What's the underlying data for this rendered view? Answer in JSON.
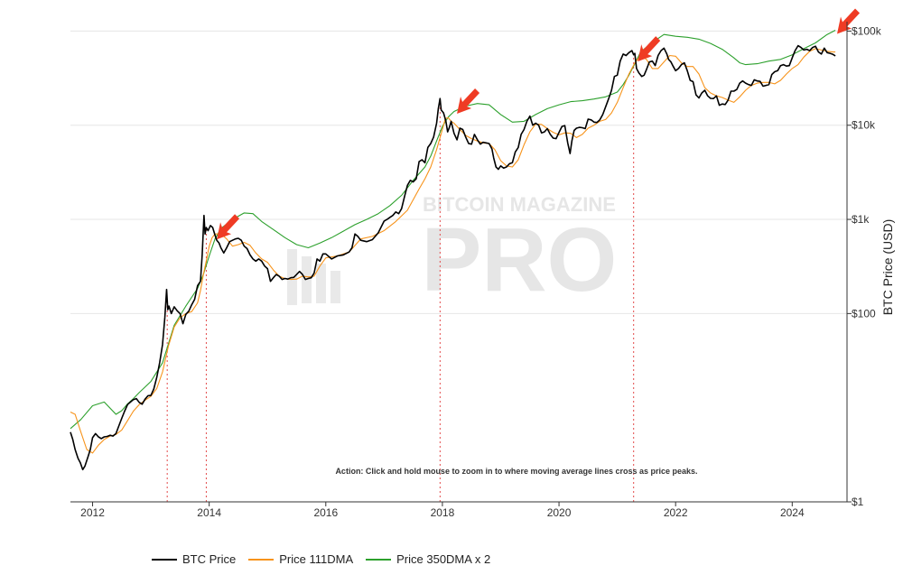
{
  "chart_data": {
    "type": "line",
    "title": "",
    "xlabel": "",
    "ylabel": "BTC Price (USD)",
    "y_scale": "log",
    "ylim": [
      1,
      100000
    ],
    "xlim": [
      2011.62,
      2024.94
    ],
    "x_ticks": [
      "2012",
      "2014",
      "2016",
      "2018",
      "2020",
      "2022",
      "2024"
    ],
    "y_ticks": [
      {
        "value": 1,
        "label": "$1"
      },
      {
        "value": 100,
        "label": "$100"
      },
      {
        "value": 1000,
        "label": "$1k"
      },
      {
        "value": 10000,
        "label": "$10k"
      },
      {
        "value": 100000,
        "label": "$100k"
      }
    ],
    "grid": "horizontal",
    "legend_position": "bottom",
    "watermark": {
      "top": "BITCOIN MAGAZINE",
      "bottom": "PRO"
    },
    "annotation": "Action: Click and hold mouse to zoom in to where moving average lines cross as price peaks.",
    "crossover_dates": [
      2013.28,
      2013.95,
      2017.96,
      2021.28
    ],
    "peak_arrows": [
      2014.13,
      2018.25,
      2021.35,
      2024.77
    ],
    "series": [
      {
        "name": "BTC Price",
        "color": "#000000",
        "x": [
          2011.62,
          2011.66,
          2011.7,
          2011.75,
          2011.79,
          2011.83,
          2011.87,
          2011.92,
          2011.96,
          2012.0,
          2012.05,
          2012.1,
          2012.15,
          2012.2,
          2012.25,
          2012.3,
          2012.35,
          2012.4,
          2012.45,
          2012.5,
          2012.55,
          2012.6,
          2012.65,
          2012.7,
          2012.75,
          2012.8,
          2012.85,
          2012.9,
          2012.95,
          2013.0,
          2013.05,
          2013.1,
          2013.15,
          2013.2,
          2013.24,
          2013.27,
          2013.29,
          2013.31,
          2013.35,
          2013.4,
          2013.45,
          2013.5,
          2013.55,
          2013.6,
          2013.65,
          2013.7,
          2013.75,
          2013.8,
          2013.85,
          2013.88,
          2013.91,
          2013.93,
          2013.95,
          2013.98,
          2014.02,
          2014.06,
          2014.1,
          2014.13,
          2014.17,
          2014.2,
          2014.25,
          2014.3,
          2014.35,
          2014.4,
          2014.45,
          2014.5,
          2014.55,
          2014.6,
          2014.65,
          2014.7,
          2014.75,
          2014.8,
          2014.85,
          2014.9,
          2014.95,
          2015.0,
          2015.05,
          2015.1,
          2015.15,
          2015.2,
          2015.25,
          2015.3,
          2015.35,
          2015.4,
          2015.45,
          2015.5,
          2015.55,
          2015.6,
          2015.65,
          2015.7,
          2015.75,
          2015.8,
          2015.85,
          2015.9,
          2015.95,
          2016.0,
          2016.1,
          2016.2,
          2016.3,
          2016.4,
          2016.45,
          2016.5,
          2016.55,
          2016.6,
          2016.7,
          2016.8,
          2016.9,
          2017.0,
          2017.05,
          2017.1,
          2017.15,
          2017.2,
          2017.25,
          2017.3,
          2017.35,
          2017.4,
          2017.45,
          2017.5,
          2017.55,
          2017.6,
          2017.65,
          2017.7,
          2017.75,
          2017.8,
          2017.85,
          2017.9,
          2017.93,
          2017.96,
          2017.98,
          2018.02,
          2018.06,
          2018.09,
          2018.12,
          2018.15,
          2018.2,
          2018.25,
          2018.3,
          2018.35,
          2018.4,
          2018.45,
          2018.5,
          2018.55,
          2018.6,
          2018.65,
          2018.7,
          2018.75,
          2018.8,
          2018.85,
          2018.88,
          2018.92,
          2018.96,
          2019.0,
          2019.05,
          2019.1,
          2019.15,
          2019.2,
          2019.25,
          2019.3,
          2019.35,
          2019.4,
          2019.45,
          2019.5,
          2019.55,
          2019.6,
          2019.65,
          2019.7,
          2019.75,
          2019.8,
          2019.85,
          2019.9,
          2019.95,
          2020.0,
          2020.05,
          2020.1,
          2020.15,
          2020.19,
          2020.22,
          2020.26,
          2020.3,
          2020.35,
          2020.4,
          2020.45,
          2020.5,
          2020.55,
          2020.6,
          2020.65,
          2020.7,
          2020.75,
          2020.8,
          2020.85,
          2020.9,
          2020.95,
          2021.0,
          2021.05,
          2021.1,
          2021.15,
          2021.2,
          2021.25,
          2021.28,
          2021.3,
          2021.33,
          2021.37,
          2021.42,
          2021.46,
          2021.5,
          2021.55,
          2021.6,
          2021.65,
          2021.7,
          2021.75,
          2021.8,
          2021.85,
          2021.88,
          2021.92,
          2021.96,
          2022.0,
          2022.05,
          2022.1,
          2022.15,
          2022.2,
          2022.25,
          2022.3,
          2022.35,
          2022.4,
          2022.45,
          2022.5,
          2022.55,
          2022.6,
          2022.65,
          2022.7,
          2022.75,
          2022.8,
          2022.85,
          2022.9,
          2022.95,
          2023.0,
          2023.05,
          2023.1,
          2023.15,
          2023.2,
          2023.25,
          2023.3,
          2023.35,
          2023.4,
          2023.45,
          2023.5,
          2023.55,
          2023.6,
          2023.65,
          2023.7,
          2023.75,
          2023.8,
          2023.85,
          2023.9,
          2023.95,
          2024.0,
          2024.05,
          2024.1,
          2024.15,
          2024.2,
          2024.25,
          2024.3,
          2024.35,
          2024.4,
          2024.45,
          2024.5,
          2024.55,
          2024.6,
          2024.65,
          2024.7,
          2024.74
        ],
        "y": [
          5.5,
          4.6,
          3.6,
          2.9,
          2.6,
          2.2,
          2.4,
          3.0,
          3.6,
          4.8,
          5.3,
          4.9,
          4.7,
          4.9,
          4.95,
          5.1,
          5.0,
          5.3,
          6.4,
          7.7,
          9.2,
          10.8,
          11.5,
          12.2,
          12.5,
          11.4,
          10.9,
          12.3,
          13.4,
          13.5,
          15.8,
          21.0,
          30.0,
          47.0,
          92.0,
          180.0,
          110.0,
          120.0,
          100.0,
          118.0,
          107.0,
          100.0,
          78.0,
          98.0,
          106.0,
          124.0,
          141.0,
          198.0,
          220.0,
          420.0,
          1100.0,
          700.0,
          820.0,
          760.0,
          860.0,
          820.0,
          680.0,
          600.0,
          560.0,
          500.0,
          440.0,
          500.0,
          580.0,
          600.0,
          620.0,
          630.0,
          600.0,
          520.0,
          490.0,
          420.0,
          380.0,
          360.0,
          380.0,
          360.0,
          320.0,
          300.0,
          220.0,
          240.0,
          260.0,
          250.0,
          230.0,
          236.0,
          232.0,
          240.0,
          242.0,
          260.0,
          280.0,
          260.0,
          230.0,
          236.0,
          240.0,
          270.0,
          380.0,
          360.0,
          430.0,
          430.0,
          380.0,
          410.0,
          420.0,
          450.0,
          500.0,
          700.0,
          660.0,
          600.0,
          580.0,
          610.0,
          720.0,
          960.0,
          1000.0,
          1050.0,
          1100.0,
          1200.0,
          1150.0,
          1300.0,
          1750.0,
          2300.0,
          2600.0,
          2500.0,
          2700.0,
          4100.0,
          4300.0,
          4000.0,
          5800.0,
          6400.0,
          7500.0,
          10500.0,
          15000.0,
          19200.0,
          14500.0,
          13500.0,
          11000.0,
          8500.0,
          9500.0,
          11000.0,
          8200.0,
          7000.0,
          9300.0,
          9000.0,
          7500.0,
          6400.0,
          6300.0,
          8000.0,
          7000.0,
          6300.0,
          6600.0,
          6500.0,
          6400.0,
          5600.0,
          4500.0,
          3600.0,
          3400.0,
          3700.0,
          3500.0,
          3600.0,
          3900.0,
          4000.0,
          5200.0,
          5800.0,
          8000.0,
          9000.0,
          11000.0,
          12500.0,
          10000.0,
          10500.0,
          10000.0,
          8300.0,
          8500.0,
          9200.0,
          8000.0,
          7300.0,
          7200.0,
          8400.0,
          9700.0,
          9900.0,
          6500.0,
          5000.0,
          6800.0,
          8800.0,
          9300.0,
          9500.0,
          9400.0,
          9200.0,
          11600.0,
          11400.0,
          10800.0,
          10700.0,
          11400.0,
          13000.0,
          15700.0,
          19000.0,
          23500.0,
          33000.0,
          34000.0,
          48000.0,
          57000.0,
          55000.0,
          59000.0,
          62000.0,
          56000.0,
          58000.0,
          40000.0,
          36000.0,
          33000.0,
          34000.0,
          39000.0,
          47000.0,
          48000.0,
          43000.0,
          55000.0,
          62000.0,
          66000.0,
          57000.0,
          50000.0,
          47000.0,
          42000.0,
          38000.0,
          40000.0,
          44000.0,
          46000.0,
          38000.0,
          30000.0,
          29000.0,
          21000.0,
          19500.0,
          22000.0,
          23500.0,
          20500.0,
          19300.0,
          19200.0,
          20500.0,
          16300.0,
          16800.0,
          16600.0,
          18500.0,
          23000.0,
          23000.0,
          24000.0,
          28000.0,
          29500.0,
          28000.0,
          27000.0,
          26500.0,
          30400.0,
          29500.0,
          29200.0,
          26000.0,
          26500.0,
          27000.0,
          34500.0,
          37000.0,
          38000.0,
          43000.0,
          44000.0,
          42500.0,
          43000.0,
          52000.0,
          62000.0,
          70000.0,
          67000.0,
          63000.0,
          64000.0,
          62000.0,
          67000.0,
          69000.0,
          60000.0,
          57000.0,
          66000.0,
          59000.0,
          58000.0,
          56500.0,
          54500
        ]
      },
      {
        "name": "Price 111DMA",
        "color": "#f7931a",
        "x": [
          2011.62,
          2011.7,
          2011.8,
          2011.9,
          2012.0,
          2012.1,
          2012.2,
          2012.3,
          2012.4,
          2012.5,
          2012.6,
          2012.7,
          2012.8,
          2012.9,
          2013.0,
          2013.1,
          2013.2,
          2013.3,
          2013.4,
          2013.5,
          2013.6,
          2013.7,
          2013.8,
          2013.85,
          2013.9,
          2013.95,
          2014.0,
          2014.05,
          2014.1,
          2014.2,
          2014.3,
          2014.4,
          2014.5,
          2014.6,
          2014.7,
          2014.8,
          2014.9,
          2015.0,
          2015.1,
          2015.2,
          2015.3,
          2015.4,
          2015.5,
          2015.6,
          2015.7,
          2015.8,
          2015.9,
          2016.0,
          2016.2,
          2016.4,
          2016.6,
          2016.8,
          2017.0,
          2017.2,
          2017.4,
          2017.6,
          2017.7,
          2017.8,
          2017.9,
          2018.0,
          2018.05,
          2018.1,
          2018.15,
          2018.2,
          2018.3,
          2018.4,
          2018.5,
          2018.6,
          2018.7,
          2018.8,
          2018.9,
          2019.0,
          2019.1,
          2019.2,
          2019.3,
          2019.4,
          2019.5,
          2019.6,
          2019.7,
          2019.8,
          2019.9,
          2020.0,
          2020.1,
          2020.2,
          2020.3,
          2020.4,
          2020.5,
          2020.6,
          2020.7,
          2020.8,
          2020.9,
          2021.0,
          2021.1,
          2021.2,
          2021.3,
          2021.4,
          2021.5,
          2021.6,
          2021.7,
          2021.8,
          2021.9,
          2022.0,
          2022.1,
          2022.2,
          2022.3,
          2022.4,
          2022.5,
          2022.6,
          2022.7,
          2022.8,
          2022.9,
          2023.0,
          2023.1,
          2023.2,
          2023.3,
          2023.4,
          2023.5,
          2023.6,
          2023.7,
          2023.8,
          2023.9,
          2024.0,
          2024.1,
          2024.2,
          2024.3,
          2024.4,
          2024.5,
          2024.6,
          2024.7,
          2024.74
        ],
        "y": [
          9.0,
          8.5,
          5.5,
          3.6,
          3.3,
          4.0,
          4.6,
          5.0,
          5.2,
          5.8,
          7.3,
          9.2,
          10.8,
          12.0,
          13.2,
          16.0,
          24.0,
          45.0,
          72.0,
          90.0,
          100.0,
          105.0,
          130.0,
          175.0,
          260.0,
          360.0,
          520.0,
          640.0,
          700.0,
          700.0,
          620.0,
          520.0,
          540.0,
          570.0,
          530.0,
          440.0,
          380.0,
          350.0,
          290.0,
          250.0,
          235.0,
          230.0,
          232.0,
          250.0,
          245.0,
          250.0,
          320.0,
          390.0,
          410.0,
          450.0,
          620.0,
          660.0,
          760.0,
          950.0,
          1250.0,
          2100.0,
          2700.0,
          3600.0,
          5500.0,
          9000.0,
          11800.0,
          12000.0,
          11000.0,
          10500.0,
          9000.0,
          7800.0,
          7200.0,
          6800.0,
          6500.0,
          6400.0,
          5500.0,
          4200.0,
          3700.0,
          3600.0,
          4300.0,
          6200.0,
          8500.0,
          10300.0,
          10200.0,
          9200.0,
          8400.0,
          7900.0,
          8300.0,
          8200.0,
          7400.0,
          8000.0,
          9300.0,
          10000.0,
          11000.0,
          11500.0,
          13500.0,
          17500.0,
          25000.0,
          35000.0,
          46000.0,
          55000.0,
          50000.0,
          40000.0,
          40000.0,
          47000.0,
          55000.0,
          54000.0,
          46000.0,
          42000.0,
          42000.0,
          35000.0,
          25000.0,
          22000.0,
          20500.0,
          19700.0,
          18500.0,
          17500.0,
          20000.0,
          23500.0,
          26500.0,
          28000.0,
          28500.0,
          28500.0,
          27500.0,
          30000.0,
          35000.0,
          40000.0,
          44000.0,
          53000.0,
          61000.0,
          65000.0,
          63000.0,
          61000.0,
          60000.0,
          60000
        ]
      },
      {
        "name": "Price 350DMA x 2",
        "color": "#2ca02c",
        "x": [
          2011.62,
          2011.8,
          2012.0,
          2012.2,
          2012.4,
          2012.5,
          2012.6,
          2012.7,
          2012.8,
          2013.0,
          2013.2,
          2013.4,
          2013.6,
          2013.8,
          2013.9,
          2014.0,
          2014.1,
          2014.2,
          2014.4,
          2014.6,
          2014.75,
          2014.9,
          2015.1,
          2015.3,
          2015.5,
          2015.7,
          2015.9,
          2016.1,
          2016.3,
          2016.5,
          2016.7,
          2016.9,
          2017.1,
          2017.3,
          2017.5,
          2017.7,
          2017.8,
          2017.9,
          2018.0,
          2018.1,
          2018.2,
          2018.4,
          2018.6,
          2018.8,
          2019.0,
          2019.2,
          2019.4,
          2019.6,
          2019.8,
          2020.0,
          2020.2,
          2020.4,
          2020.6,
          2020.8,
          2021.0,
          2021.1,
          2021.2,
          2021.3,
          2021.4,
          2021.6,
          2021.8,
          2022.0,
          2022.2,
          2022.4,
          2022.6,
          2022.8,
          2023.0,
          2023.1,
          2023.2,
          2023.4,
          2023.6,
          2023.8,
          2024.0,
          2024.2,
          2024.4,
          2024.6,
          2024.74
        ],
        "y": [
          6.0,
          7.5,
          10.5,
          11.5,
          8.5,
          9.3,
          11.0,
          12.5,
          14.5,
          19.0,
          30.0,
          75.0,
          120.0,
          185.0,
          260.0,
          410.0,
          620.0,
          800.0,
          1000.0,
          1170.0,
          1150.0,
          950.0,
          780.0,
          640.0,
          540.0,
          500.0,
          560.0,
          640.0,
          750.0,
          880.0,
          1000.0,
          1150.0,
          1400.0,
          1800.0,
          2600.0,
          3600.0,
          4700.0,
          6800.0,
          9700.0,
          12200.0,
          14000.0,
          16000.0,
          17000.0,
          16500.0,
          13000.0,
          10800.0,
          11000.0,
          13000.0,
          15000.0,
          16500.0,
          17800.0,
          18200.0,
          19000.0,
          20000.0,
          22500.0,
          27000.0,
          34000.0,
          45000.0,
          60000.0,
          76000.0,
          92000.0,
          88000.0,
          86000.0,
          82000.0,
          74000.0,
          64000.0,
          52000.0,
          46000.0,
          44000.0,
          45000.0,
          48000.0,
          50000.0,
          56000.0,
          65000.0,
          75000.0,
          92000.0,
          102000
        ]
      }
    ]
  }
}
